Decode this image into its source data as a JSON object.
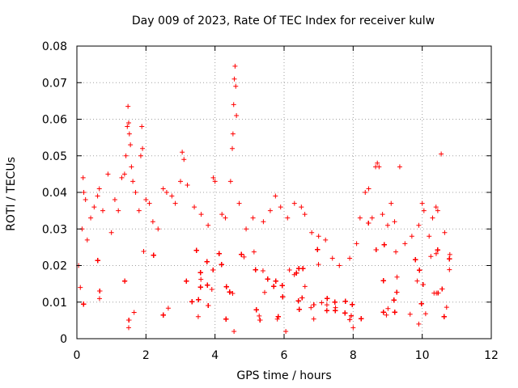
{
  "chart_data": {
    "type": "scatter",
    "title": "Day 009 of 2023, Rate Of TEC Index for receiver kulw",
    "xlabel": "GPS time / hours",
    "ylabel": "ROTI / TECUs",
    "xlim": [
      0,
      12
    ],
    "ylim": [
      0,
      0.08
    ],
    "xticks": [
      0,
      2,
      4,
      6,
      8,
      10,
      12
    ],
    "xtick_labels": [
      "0",
      "2",
      "4",
      "6",
      "8",
      "10",
      "12"
    ],
    "yticks": [
      0,
      0.01,
      0.02,
      0.03,
      0.04,
      0.05,
      0.06,
      0.07,
      0.08
    ],
    "ytick_labels": [
      "0",
      "0.01",
      "0.02",
      "0.03",
      "0.04",
      "0.05",
      "0.06",
      "0.07",
      "0.08"
    ],
    "grid": true,
    "marker": "+",
    "color": "#ff0000",
    "x_data_range": [
      0,
      10.85
    ],
    "typical_range": [
      0.005,
      0.02
    ],
    "series": [
      {
        "name": "ROTI",
        "points": [
          [
            0.05,
            0.02
          ],
          [
            0.1,
            0.014
          ],
          [
            0.15,
            0.03
          ],
          [
            0.18,
            0.044
          ],
          [
            0.2,
            0.04
          ],
          [
            0.25,
            0.038
          ],
          [
            0.3,
            0.027
          ],
          [
            0.4,
            0.033
          ],
          [
            0.5,
            0.036
          ],
          [
            0.6,
            0.039
          ],
          [
            0.65,
            0.041
          ],
          [
            0.75,
            0.035
          ],
          [
            0.9,
            0.045
          ],
          [
            1.0,
            0.029
          ],
          [
            1.1,
            0.038
          ],
          [
            1.2,
            0.035
          ],
          [
            1.3,
            0.044
          ],
          [
            1.38,
            0.045
          ],
          [
            1.42,
            0.05
          ],
          [
            1.46,
            0.058
          ],
          [
            1.48,
            0.0635
          ],
          [
            1.5,
            0.059
          ],
          [
            1.52,
            0.056
          ],
          [
            1.55,
            0.053
          ],
          [
            1.58,
            0.047
          ],
          [
            1.62,
            0.043
          ],
          [
            1.7,
            0.04
          ],
          [
            1.8,
            0.035
          ],
          [
            1.85,
            0.05
          ],
          [
            1.88,
            0.058
          ],
          [
            1.9,
            0.052
          ],
          [
            2.0,
            0.038
          ],
          [
            2.1,
            0.037
          ],
          [
            2.2,
            0.032
          ],
          [
            2.35,
            0.03
          ],
          [
            2.5,
            0.041
          ],
          [
            2.6,
            0.04
          ],
          [
            2.75,
            0.039
          ],
          [
            2.85,
            0.037
          ],
          [
            3.0,
            0.043
          ],
          [
            3.05,
            0.051
          ],
          [
            3.1,
            0.049
          ],
          [
            3.2,
            0.042
          ],
          [
            3.4,
            0.036
          ],
          [
            3.6,
            0.034
          ],
          [
            3.8,
            0.031
          ],
          [
            3.95,
            0.044
          ],
          [
            4.0,
            0.043
          ],
          [
            4.2,
            0.034
          ],
          [
            4.3,
            0.033
          ],
          [
            4.45,
            0.043
          ],
          [
            4.5,
            0.052
          ],
          [
            4.52,
            0.056
          ],
          [
            4.54,
            0.064
          ],
          [
            4.56,
            0.071
          ],
          [
            4.58,
            0.0745
          ],
          [
            4.6,
            0.069
          ],
          [
            4.62,
            0.061
          ],
          [
            4.7,
            0.037
          ],
          [
            4.9,
            0.03
          ],
          [
            5.1,
            0.033
          ],
          [
            5.4,
            0.032
          ],
          [
            5.6,
            0.035
          ],
          [
            5.75,
            0.039
          ],
          [
            5.9,
            0.036
          ],
          [
            6.1,
            0.033
          ],
          [
            6.3,
            0.037
          ],
          [
            6.5,
            0.036
          ],
          [
            6.6,
            0.034
          ],
          [
            6.8,
            0.029
          ],
          [
            7.0,
            0.028
          ],
          [
            7.2,
            0.027
          ],
          [
            7.4,
            0.022
          ],
          [
            7.6,
            0.02
          ],
          [
            7.9,
            0.022
          ],
          [
            8.1,
            0.026
          ],
          [
            8.2,
            0.033
          ],
          [
            8.35,
            0.04
          ],
          [
            8.45,
            0.041
          ],
          [
            8.55,
            0.033
          ],
          [
            8.65,
            0.047
          ],
          [
            8.7,
            0.048
          ],
          [
            8.75,
            0.047
          ],
          [
            8.85,
            0.034
          ],
          [
            9.0,
            0.031
          ],
          [
            9.1,
            0.037
          ],
          [
            9.2,
            0.032
          ],
          [
            9.35,
            0.047
          ],
          [
            9.5,
            0.026
          ],
          [
            9.7,
            0.028
          ],
          [
            9.9,
            0.031
          ],
          [
            10.0,
            0.037
          ],
          [
            10.05,
            0.035
          ],
          [
            10.2,
            0.028
          ],
          [
            10.3,
            0.033
          ],
          [
            10.4,
            0.036
          ],
          [
            10.45,
            0.035
          ],
          [
            10.55,
            0.0505
          ],
          [
            10.65,
            0.029
          ],
          [
            10.8,
            0.023
          ],
          [
            4.55,
            0.002
          ],
          [
            6.05,
            0.002
          ],
          [
            8.0,
            0.003
          ],
          [
            1.5,
            0.003
          ],
          [
            9.9,
            0.004
          ]
        ]
      }
    ]
  }
}
